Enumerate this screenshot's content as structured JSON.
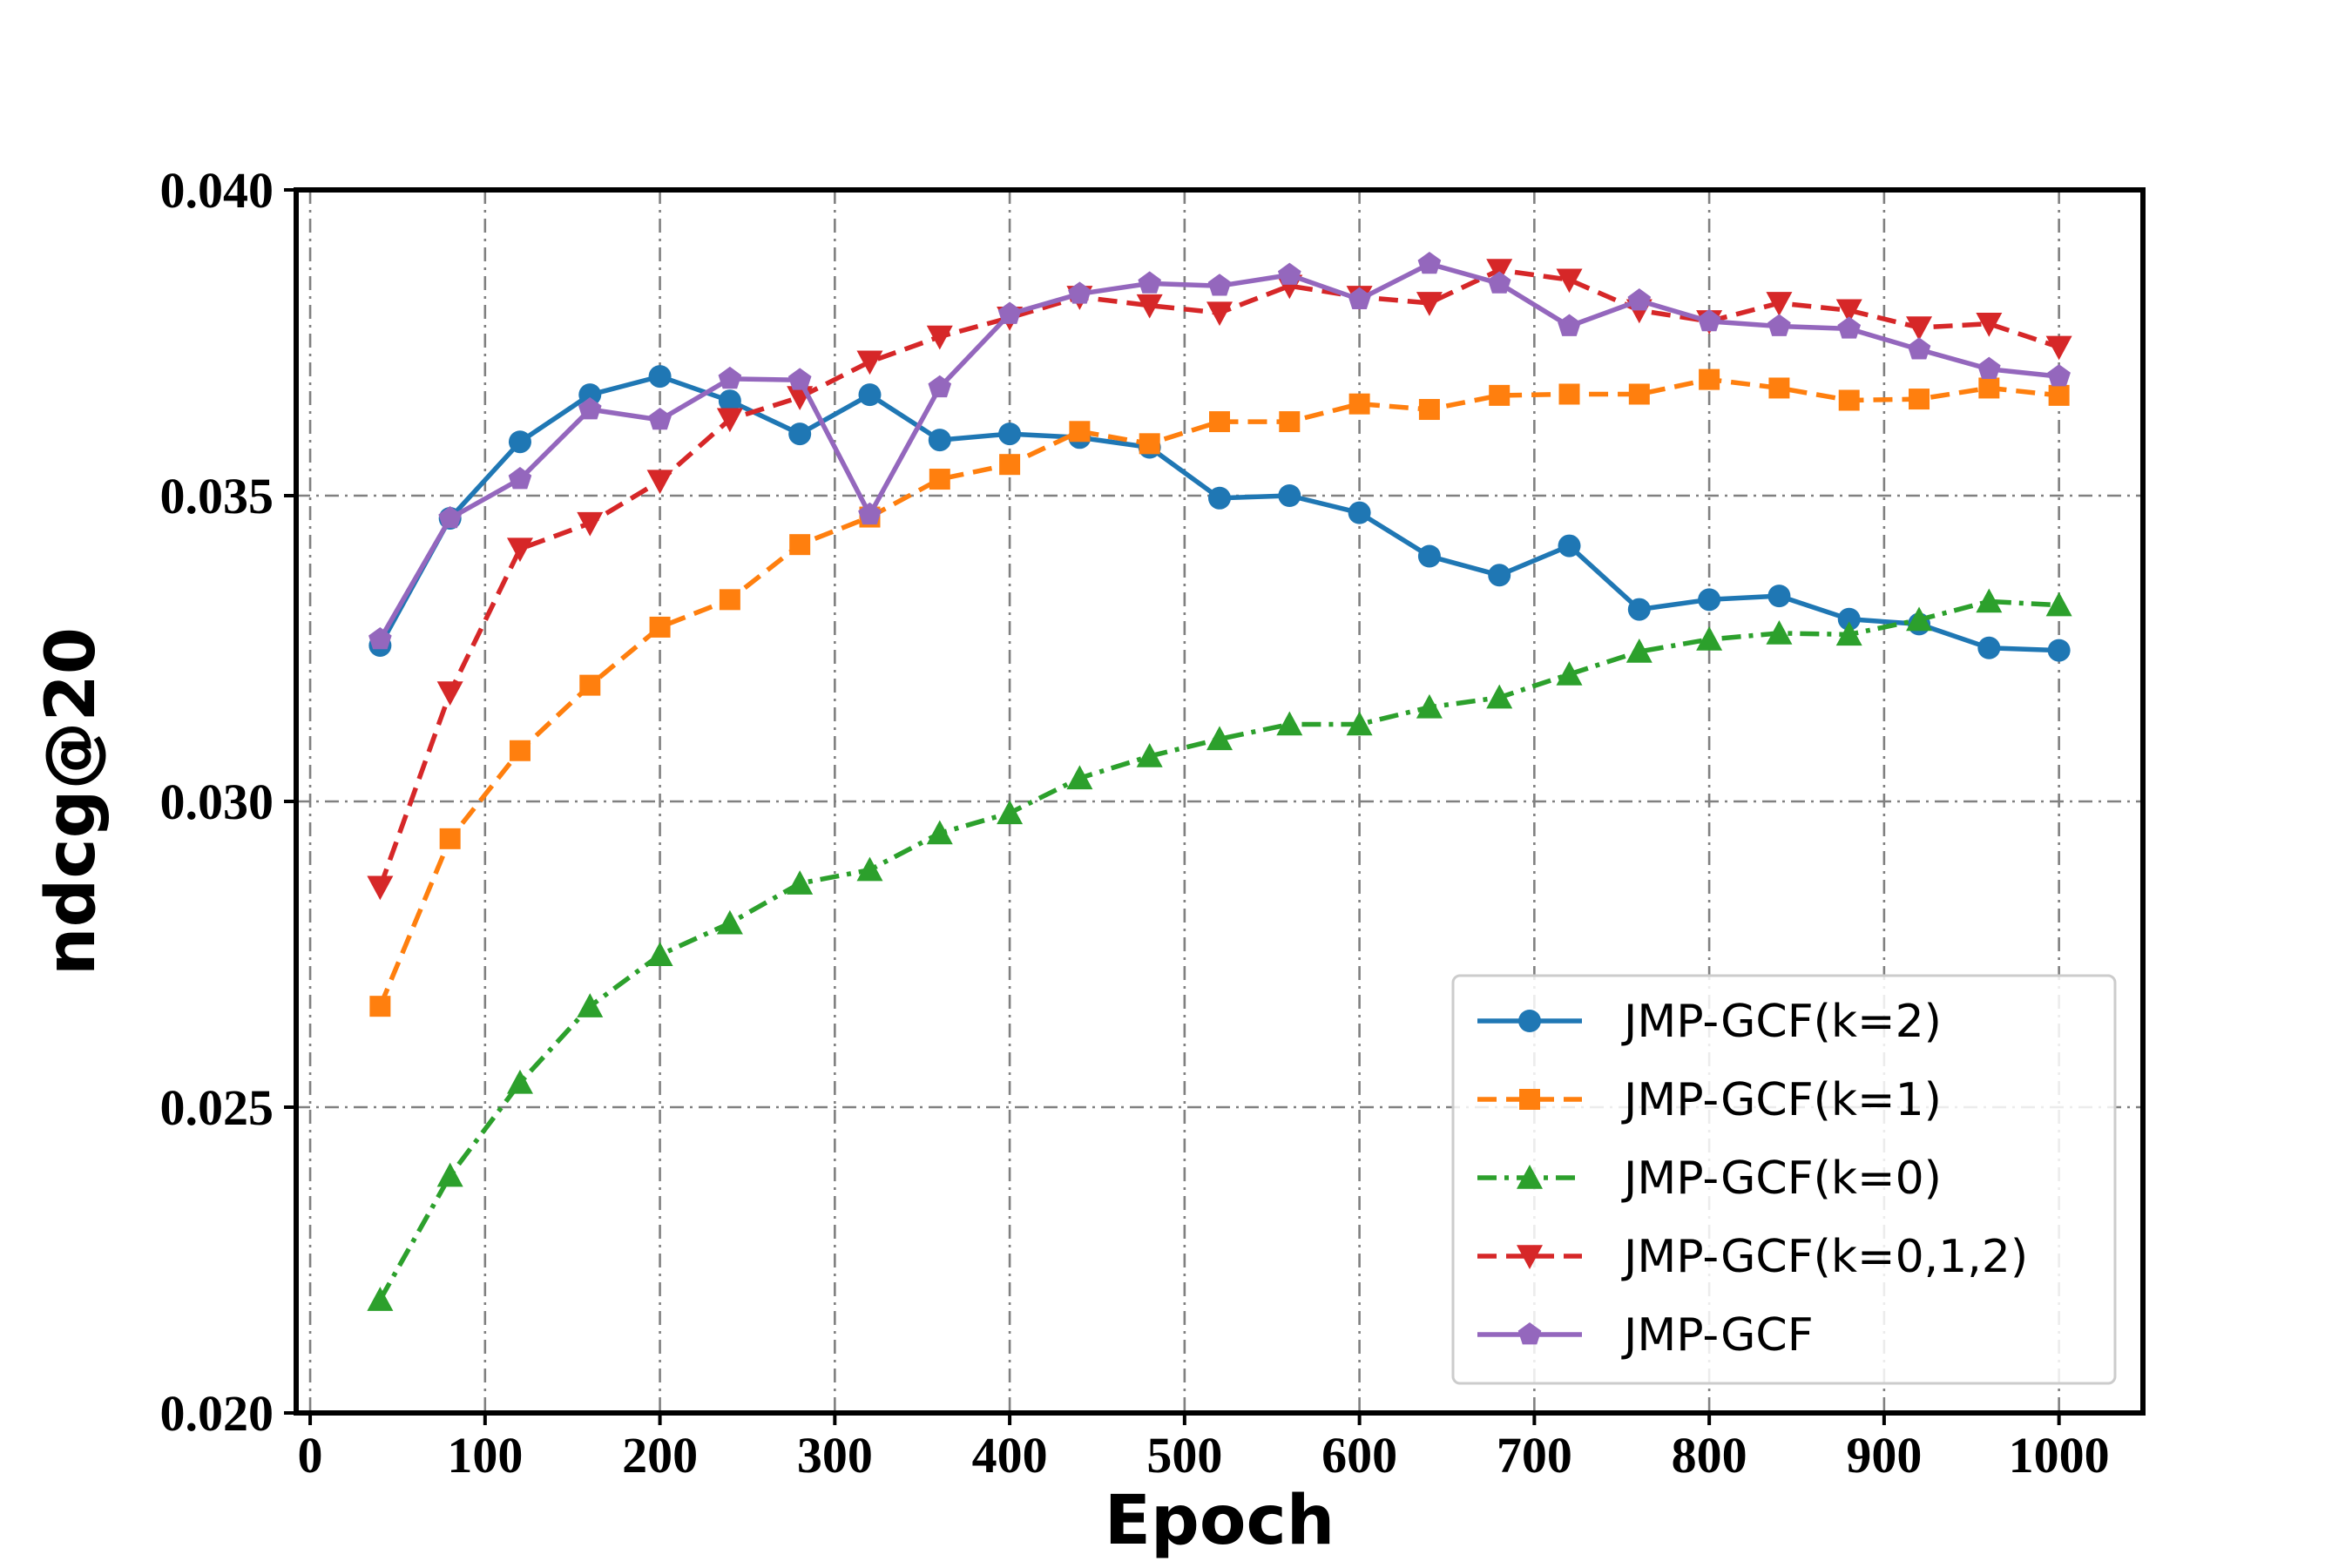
{
  "chart_data": {
    "type": "line",
    "title": "",
    "xlabel": "Epoch",
    "ylabel": "ndcg@20",
    "xlim": [
      -8,
      1048
    ],
    "ylim": [
      0.02,
      0.04
    ],
    "xticks": [
      0,
      100,
      200,
      300,
      400,
      500,
      600,
      700,
      800,
      900,
      1000
    ],
    "xtick_labels": [
      "0",
      "100",
      "200",
      "300",
      "400",
      "500",
      "600",
      "700",
      "800",
      "900",
      "1000"
    ],
    "yticks": [
      0.02,
      0.025,
      0.03,
      0.035,
      0.04
    ],
    "ytick_labels": [
      "0.020",
      "0.025",
      "0.030",
      "0.035",
      "0.040"
    ],
    "grid": true,
    "legend_position": "lower-right",
    "x": [
      40,
      80,
      120,
      160,
      200,
      240,
      280,
      320,
      360,
      400,
      440,
      480,
      520,
      560,
      600,
      640,
      680,
      720,
      760,
      800,
      840,
      880,
      920,
      960,
      1000
    ],
    "series": [
      {
        "name": "JMP-GCF(k=2)",
        "color": "#1f77b4",
        "linestyle": "solid",
        "marker": "circle",
        "values": [
          0.03255,
          0.03463,
          0.03588,
          0.03665,
          0.03695,
          0.03655,
          0.03601,
          0.03665,
          0.03591,
          0.03601,
          0.03595,
          0.03579,
          0.03496,
          0.035,
          0.03472,
          0.03401,
          0.0337,
          0.03418,
          0.03314,
          0.0333,
          0.03336,
          0.03298,
          0.0329,
          0.03251,
          0.03247
        ]
      },
      {
        "name": "JMP-GCF(k=1)",
        "color": "#ff7f0e",
        "linestyle": "dashed",
        "marker": "square",
        "values": [
          0.02665,
          0.02939,
          0.03083,
          0.0319,
          0.03285,
          0.0333,
          0.0342,
          0.03465,
          0.03527,
          0.03551,
          0.03605,
          0.03585,
          0.03621,
          0.03621,
          0.0365,
          0.03641,
          0.03664,
          0.03666,
          0.03666,
          0.0369,
          0.03676,
          0.03656,
          0.03658,
          0.03676,
          0.03664
        ]
      },
      {
        "name": "JMP-GCF(k=0)",
        "color": "#2ca02c",
        "linestyle": "dashdot",
        "marker": "triangle-up",
        "values": [
          0.02185,
          0.02388,
          0.0254,
          0.02665,
          0.02749,
          0.02801,
          0.02866,
          0.02888,
          0.02948,
          0.02981,
          0.03038,
          0.03074,
          0.03102,
          0.03126,
          0.03126,
          0.03154,
          0.0317,
          0.03208,
          0.03245,
          0.03265,
          0.03275,
          0.03273,
          0.03297,
          0.03327,
          0.03321
        ]
      },
      {
        "name": "JMP-GCF(k=0,1,2)",
        "color": "#d62728",
        "linestyle": "dashed",
        "marker": "triangle-down",
        "values": [
          0.0286,
          0.03178,
          0.03413,
          0.03455,
          0.03524,
          0.03625,
          0.03661,
          0.03719,
          0.0376,
          0.03791,
          0.03825,
          0.03811,
          0.03799,
          0.03843,
          0.03825,
          0.03815,
          0.03869,
          0.03853,
          0.03803,
          0.03785,
          0.03815,
          0.03803,
          0.03775,
          0.03781,
          0.03743
        ]
      },
      {
        "name": "JMP-GCF",
        "color": "#9467bd",
        "linestyle": "solid",
        "marker": "pentagon",
        "values": [
          0.03265,
          0.03463,
          0.03527,
          0.03641,
          0.03624,
          0.03691,
          0.03689,
          0.03469,
          0.03677,
          0.03797,
          0.0383,
          0.03847,
          0.03843,
          0.03861,
          0.03821,
          0.03879,
          0.03847,
          0.03777,
          0.03819,
          0.03785,
          0.03777,
          0.03773,
          0.03739,
          0.03707,
          0.03695
        ]
      }
    ]
  }
}
